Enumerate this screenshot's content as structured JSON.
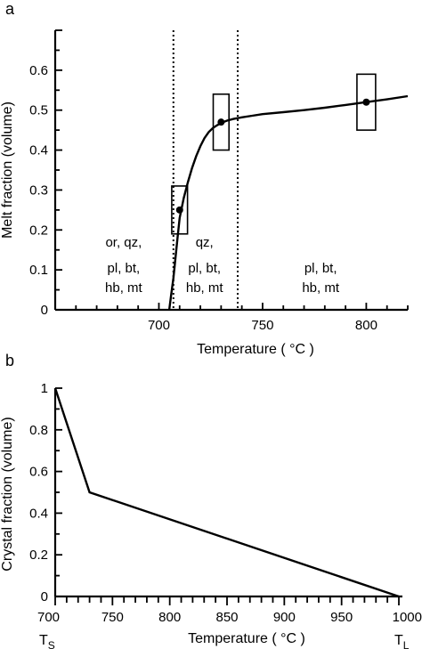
{
  "chart_data": [
    {
      "panel_label": "a",
      "type": "line",
      "xlabel": "Temperature ( °C )",
      "ylabel": "Melt fraction (volume)",
      "xlim": [
        650,
        820
      ],
      "ylim": [
        0,
        0.7
      ],
      "x_ticks": [
        700,
        750,
        800
      ],
      "x_tick_labels": [
        "700",
        "750",
        "800"
      ],
      "y_ticks": [
        0,
        0.1,
        0.2,
        0.3,
        0.4,
        0.5,
        0.6
      ],
      "y_tick_labels": [
        "0",
        "0.1",
        "0.2",
        "0.3",
        "0.4",
        "0.5",
        "0.6"
      ],
      "curve": {
        "x": [
          705,
          706,
          707,
          708,
          709,
          710,
          712,
          714,
          716,
          718,
          720,
          722,
          724,
          726,
          728,
          730,
          733,
          736,
          740,
          745,
          750,
          760,
          770,
          780,
          790,
          800,
          810,
          820
        ],
        "y": [
          0,
          0.04,
          0.08,
          0.13,
          0.18,
          0.23,
          0.28,
          0.32,
          0.355,
          0.385,
          0.41,
          0.43,
          0.445,
          0.455,
          0.462,
          0.468,
          0.474,
          0.478,
          0.482,
          0.486,
          0.49,
          0.495,
          0.5,
          0.506,
          0.513,
          0.52,
          0.527,
          0.535
        ]
      },
      "points": [
        {
          "x": 710,
          "y": 0.25,
          "err_x": 3.8,
          "err_y": 0.06
        },
        {
          "x": 730,
          "y": 0.47,
          "err_x": 3.8,
          "err_y": 0.07
        },
        {
          "x": 800,
          "y": 0.52,
          "err_x": 4.5,
          "err_y": 0.07
        }
      ],
      "vlines": [
        707,
        738
      ],
      "annotations": [
        {
          "lines": [
            "or, qz,",
            "pl, bt,",
            "hb, mt"
          ],
          "x": 683
        },
        {
          "lines": [
            "qz,",
            "pl, bt,",
            "hb, mt"
          ],
          "x": 722
        },
        {
          "lines": [
            "pl, bt,",
            "hb, mt"
          ],
          "x": 778
        }
      ]
    },
    {
      "panel_label": "b",
      "type": "line",
      "xlabel": "Temperature ( °C )",
      "ylabel": "Crystal fraction (volume)",
      "xlim": [
        700,
        1000
      ],
      "ylim": [
        0,
        1
      ],
      "x_ticks": [
        700,
        750,
        800,
        850,
        900,
        950,
        1000
      ],
      "x_tick_labels": [
        "700",
        "750",
        "800",
        "850",
        "900",
        "950",
        "1000"
      ],
      "y_ticks": [
        0,
        0.2,
        0.4,
        0.6,
        0.8,
        1
      ],
      "y_tick_labels": [
        "0",
        "0.2",
        "0.4",
        "0.6",
        "0.8",
        "1"
      ],
      "curve": {
        "x": [
          700,
          730,
          1000
        ],
        "y": [
          1,
          0.5,
          0
        ]
      },
      "endpoint_labels": {
        "left": {
          "main": "T",
          "sub": "S"
        },
        "right": {
          "main": "T",
          "sub": "L"
        }
      }
    }
  ]
}
